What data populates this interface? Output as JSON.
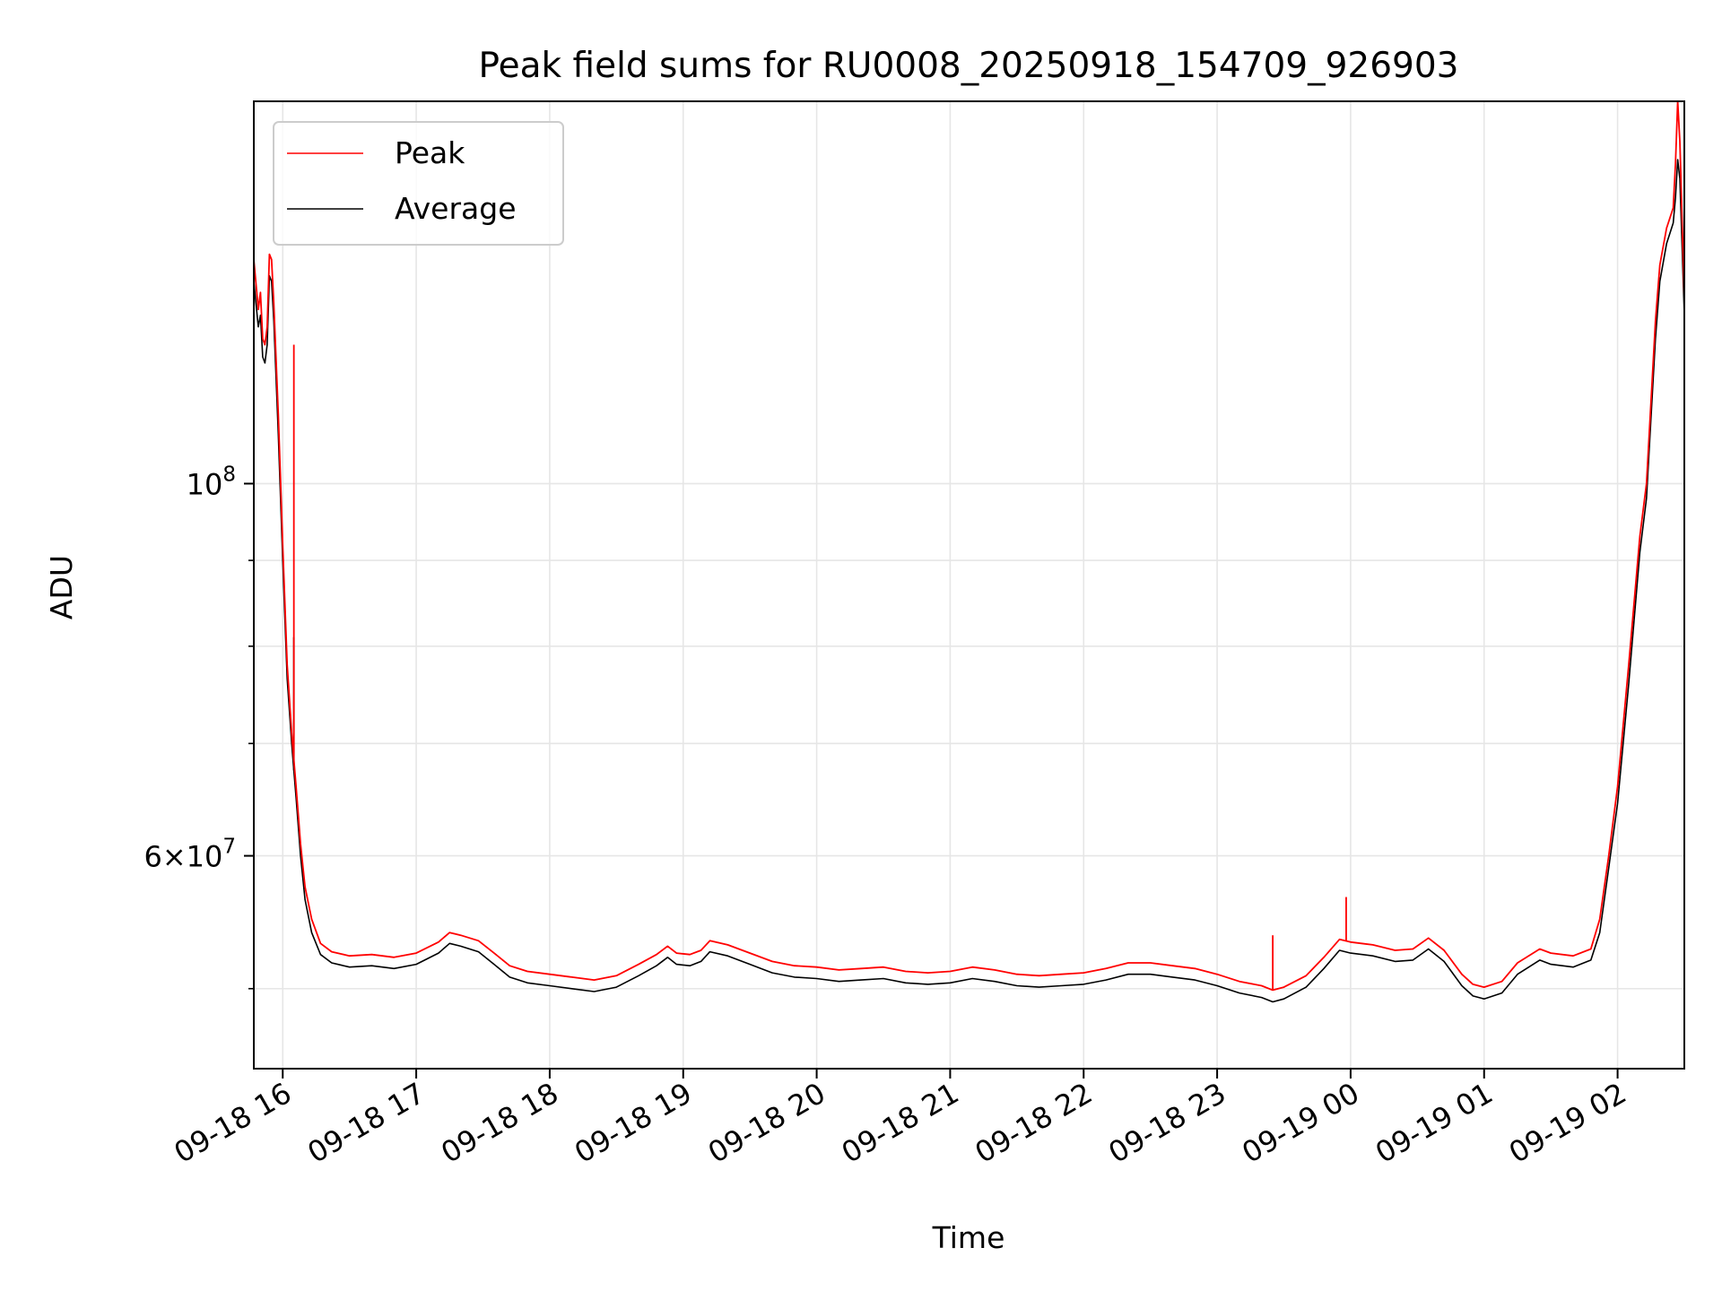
{
  "chart_data": {
    "type": "line",
    "title": "Peak field sums for RU0008_20250918_154709_926903",
    "xlabel": "Time",
    "ylabel": "ADU",
    "y_scale": "log",
    "ylim": [
      44800000,
      169000000
    ],
    "xlim": [
      "2025-09-18 15:47",
      "2025-09-19 02:30"
    ],
    "grid": true,
    "legend_position": "top-left",
    "x_ticks": [
      {
        "t": "2025-09-18 16:00",
        "label": "09-18 16"
      },
      {
        "t": "2025-09-18 17:00",
        "label": "09-18 17"
      },
      {
        "t": "2025-09-18 18:00",
        "label": "09-18 18"
      },
      {
        "t": "2025-09-18 19:00",
        "label": "09-18 19"
      },
      {
        "t": "2025-09-18 20:00",
        "label": "09-18 20"
      },
      {
        "t": "2025-09-18 21:00",
        "label": "09-18 21"
      },
      {
        "t": "2025-09-18 22:00",
        "label": "09-18 22"
      },
      {
        "t": "2025-09-18 23:00",
        "label": "09-18 23"
      },
      {
        "t": "2025-09-19 00:00",
        "label": "09-19 00"
      },
      {
        "t": "2025-09-19 01:00",
        "label": "09-19 01"
      },
      {
        "t": "2025-09-19 02:00",
        "label": "09-19 02"
      }
    ],
    "y_major_ticks": [
      {
        "value": 100000000,
        "base": "10",
        "exp": "8"
      },
      {
        "value": 60000000,
        "mant": "6",
        "times": "×",
        "base": "10",
        "exp": "7"
      }
    ],
    "y_minor_ticks": [
      50000000,
      70000000,
      80000000,
      90000000
    ],
    "series": [
      {
        "name": "Peak",
        "color": "#ff0000",
        "points": [
          [
            "2025-09-18 15:47",
            136000000
          ],
          [
            "2025-09-18 15:49",
            127000000
          ],
          [
            "2025-09-18 15:50",
            130000000
          ],
          [
            "2025-09-18 15:51",
            122000000
          ],
          [
            "2025-09-18 15:52",
            121000000
          ],
          [
            "2025-09-18 15:53",
            124000000
          ],
          [
            "2025-09-18 15:54",
            137000000
          ],
          [
            "2025-09-18 15:55",
            136000000
          ],
          [
            "2025-09-18 15:56",
            128000000
          ],
          [
            "2025-09-18 15:58",
            110000000
          ],
          [
            "2025-09-18 16:00",
            92000000
          ],
          [
            "2025-09-18 16:02",
            78000000
          ],
          [
            "2025-09-18 16:04",
            71000000
          ],
          [
            "2025-09-18 16:06",
            66000000
          ],
          [
            "2025-09-18 16:08",
            61000000
          ],
          [
            "2025-09-18 16:10",
            57500000
          ],
          [
            "2025-09-18 16:13",
            55000000
          ],
          [
            "2025-09-18 16:17",
            53200000
          ],
          [
            "2025-09-18 16:22",
            52600000
          ],
          [
            "2025-09-18 16:30",
            52300000
          ],
          [
            "2025-09-18 16:40",
            52400000
          ],
          [
            "2025-09-18 16:50",
            52200000
          ],
          [
            "2025-09-18 17:00",
            52500000
          ],
          [
            "2025-09-18 17:10",
            53300000
          ],
          [
            "2025-09-18 17:15",
            54000000
          ],
          [
            "2025-09-18 17:20",
            53800000
          ],
          [
            "2025-09-18 17:28",
            53400000
          ],
          [
            "2025-09-18 17:35",
            52500000
          ],
          [
            "2025-09-18 17:42",
            51600000
          ],
          [
            "2025-09-18 17:50",
            51200000
          ],
          [
            "2025-09-18 18:00",
            51000000
          ],
          [
            "2025-09-18 18:10",
            50800000
          ],
          [
            "2025-09-18 18:20",
            50600000
          ],
          [
            "2025-09-18 18:30",
            50900000
          ],
          [
            "2025-09-18 18:40",
            51700000
          ],
          [
            "2025-09-18 18:48",
            52400000
          ],
          [
            "2025-09-18 18:53",
            53000000
          ],
          [
            "2025-09-18 18:57",
            52500000
          ],
          [
            "2025-09-18 19:03",
            52400000
          ],
          [
            "2025-09-18 19:08",
            52700000
          ],
          [
            "2025-09-18 19:12",
            53400000
          ],
          [
            "2025-09-18 19:20",
            53100000
          ],
          [
            "2025-09-18 19:30",
            52500000
          ],
          [
            "2025-09-18 19:40",
            51900000
          ],
          [
            "2025-09-18 19:50",
            51600000
          ],
          [
            "2025-09-18 20:00",
            51500000
          ],
          [
            "2025-09-18 20:10",
            51300000
          ],
          [
            "2025-09-18 20:20",
            51400000
          ],
          [
            "2025-09-18 20:30",
            51500000
          ],
          [
            "2025-09-18 20:40",
            51200000
          ],
          [
            "2025-09-18 20:50",
            51100000
          ],
          [
            "2025-09-18 21:00",
            51200000
          ],
          [
            "2025-09-18 21:10",
            51500000
          ],
          [
            "2025-09-18 21:20",
            51300000
          ],
          [
            "2025-09-18 21:30",
            51000000
          ],
          [
            "2025-09-18 21:40",
            50900000
          ],
          [
            "2025-09-18 21:50",
            51000000
          ],
          [
            "2025-09-18 22:00",
            51100000
          ],
          [
            "2025-09-18 22:10",
            51400000
          ],
          [
            "2025-09-18 22:20",
            51800000
          ],
          [
            "2025-09-18 22:30",
            51800000
          ],
          [
            "2025-09-18 22:40",
            51600000
          ],
          [
            "2025-09-18 22:50",
            51400000
          ],
          [
            "2025-09-18 23:00",
            51000000
          ],
          [
            "2025-09-18 23:10",
            50500000
          ],
          [
            "2025-09-18 23:20",
            50200000
          ],
          [
            "2025-09-18 23:25",
            49900000
          ],
          [
            "2025-09-18 23:30",
            50100000
          ],
          [
            "2025-09-18 23:40",
            50900000
          ],
          [
            "2025-09-18 23:48",
            52200000
          ],
          [
            "2025-09-18 23:55",
            53500000
          ],
          [
            "2025-09-19 00:00",
            53300000
          ],
          [
            "2025-09-19 00:10",
            53100000
          ],
          [
            "2025-09-19 00:20",
            52700000
          ],
          [
            "2025-09-19 00:28",
            52800000
          ],
          [
            "2025-09-19 00:35",
            53600000
          ],
          [
            "2025-09-19 00:42",
            52700000
          ],
          [
            "2025-09-19 00:50",
            51000000
          ],
          [
            "2025-09-19 00:55",
            50300000
          ],
          [
            "2025-09-19 01:00",
            50100000
          ],
          [
            "2025-09-19 01:08",
            50500000
          ],
          [
            "2025-09-19 01:15",
            51800000
          ],
          [
            "2025-09-19 01:25",
            52800000
          ],
          [
            "2025-09-19 01:30",
            52500000
          ],
          [
            "2025-09-19 01:40",
            52300000
          ],
          [
            "2025-09-19 01:48",
            52800000
          ],
          [
            "2025-09-19 01:52",
            55000000
          ],
          [
            "2025-09-19 01:56",
            60000000
          ],
          [
            "2025-09-19 02:00",
            66000000
          ],
          [
            "2025-09-19 02:05",
            78000000
          ],
          [
            "2025-09-19 02:10",
            93000000
          ],
          [
            "2025-09-19 02:13",
            100000000
          ],
          [
            "2025-09-19 02:17",
            125000000
          ],
          [
            "2025-09-19 02:19",
            135000000
          ],
          [
            "2025-09-19 02:22",
            142000000
          ],
          [
            "2025-09-19 02:25",
            146000000
          ],
          [
            "2025-09-19 02:26",
            155000000
          ],
          [
            "2025-09-19 02:27",
            169000000
          ],
          [
            "2025-09-19 02:28",
            160000000
          ],
          [
            "2025-09-19 02:30",
            129000000
          ]
        ],
        "spikes": [
          [
            "2025-09-18 16:05",
            121000000
          ],
          [
            "2025-09-18 23:25",
            53800000
          ],
          [
            "2025-09-18 23:58",
            56700000
          ]
        ]
      },
      {
        "name": "Average",
        "color": "#000000",
        "points": [
          [
            "2025-09-18 15:47",
            132000000
          ],
          [
            "2025-09-18 15:49",
            124000000
          ],
          [
            "2025-09-18 15:50",
            126000000
          ],
          [
            "2025-09-18 15:51",
            119000000
          ],
          [
            "2025-09-18 15:52",
            118000000
          ],
          [
            "2025-09-18 15:53",
            121000000
          ],
          [
            "2025-09-18 15:54",
            133000000
          ],
          [
            "2025-09-18 15:55",
            132000000
          ],
          [
            "2025-09-18 15:56",
            125000000
          ],
          [
            "2025-09-18 15:58",
            107000000
          ],
          [
            "2025-09-18 16:00",
            90000000
          ],
          [
            "2025-09-18 16:02",
            76500000
          ],
          [
            "2025-09-18 16:04",
            70000000
          ],
          [
            "2025-09-18 16:06",
            65000000
          ],
          [
            "2025-09-18 16:08",
            60000000
          ],
          [
            "2025-09-18 16:10",
            56500000
          ],
          [
            "2025-09-18 16:13",
            54000000
          ],
          [
            "2025-09-18 16:17",
            52400000
          ],
          [
            "2025-09-18 16:22",
            51800000
          ],
          [
            "2025-09-18 16:30",
            51500000
          ],
          [
            "2025-09-18 16:40",
            51600000
          ],
          [
            "2025-09-18 16:50",
            51400000
          ],
          [
            "2025-09-18 17:00",
            51700000
          ],
          [
            "2025-09-18 17:10",
            52500000
          ],
          [
            "2025-09-18 17:15",
            53200000
          ],
          [
            "2025-09-18 17:20",
            53000000
          ],
          [
            "2025-09-18 17:28",
            52600000
          ],
          [
            "2025-09-18 17:35",
            51700000
          ],
          [
            "2025-09-18 17:42",
            50800000
          ],
          [
            "2025-09-18 17:50",
            50400000
          ],
          [
            "2025-09-18 18:00",
            50200000
          ],
          [
            "2025-09-18 18:10",
            50000000
          ],
          [
            "2025-09-18 18:20",
            49800000
          ],
          [
            "2025-09-18 18:30",
            50100000
          ],
          [
            "2025-09-18 18:40",
            50900000
          ],
          [
            "2025-09-18 18:48",
            51600000
          ],
          [
            "2025-09-18 18:53",
            52200000
          ],
          [
            "2025-09-18 18:57",
            51700000
          ],
          [
            "2025-09-18 19:03",
            51600000
          ],
          [
            "2025-09-18 19:08",
            51900000
          ],
          [
            "2025-09-18 19:12",
            52600000
          ],
          [
            "2025-09-18 19:20",
            52300000
          ],
          [
            "2025-09-18 19:30",
            51700000
          ],
          [
            "2025-09-18 19:40",
            51100000
          ],
          [
            "2025-09-18 19:50",
            50800000
          ],
          [
            "2025-09-18 20:00",
            50700000
          ],
          [
            "2025-09-18 20:10",
            50500000
          ],
          [
            "2025-09-18 20:20",
            50600000
          ],
          [
            "2025-09-18 20:30",
            50700000
          ],
          [
            "2025-09-18 20:40",
            50400000
          ],
          [
            "2025-09-18 20:50",
            50300000
          ],
          [
            "2025-09-18 21:00",
            50400000
          ],
          [
            "2025-09-18 21:10",
            50700000
          ],
          [
            "2025-09-18 21:20",
            50500000
          ],
          [
            "2025-09-18 21:30",
            50200000
          ],
          [
            "2025-09-18 21:40",
            50100000
          ],
          [
            "2025-09-18 21:50",
            50200000
          ],
          [
            "2025-09-18 22:00",
            50300000
          ],
          [
            "2025-09-18 22:10",
            50600000
          ],
          [
            "2025-09-18 22:20",
            51000000
          ],
          [
            "2025-09-18 22:30",
            51000000
          ],
          [
            "2025-09-18 22:40",
            50800000
          ],
          [
            "2025-09-18 22:50",
            50600000
          ],
          [
            "2025-09-18 23:00",
            50200000
          ],
          [
            "2025-09-18 23:10",
            49700000
          ],
          [
            "2025-09-18 23:20",
            49400000
          ],
          [
            "2025-09-18 23:25",
            49100000
          ],
          [
            "2025-09-18 23:30",
            49300000
          ],
          [
            "2025-09-18 23:40",
            50100000
          ],
          [
            "2025-09-18 23:48",
            51400000
          ],
          [
            "2025-09-18 23:55",
            52700000
          ],
          [
            "2025-09-19 00:00",
            52500000
          ],
          [
            "2025-09-19 00:10",
            52300000
          ],
          [
            "2025-09-19 00:20",
            51900000
          ],
          [
            "2025-09-19 00:28",
            52000000
          ],
          [
            "2025-09-19 00:35",
            52800000
          ],
          [
            "2025-09-19 00:42",
            51900000
          ],
          [
            "2025-09-19 00:50",
            50200000
          ],
          [
            "2025-09-19 00:55",
            49500000
          ],
          [
            "2025-09-19 01:00",
            49300000
          ],
          [
            "2025-09-19 01:08",
            49700000
          ],
          [
            "2025-09-19 01:15",
            51000000
          ],
          [
            "2025-09-19 01:25",
            52000000
          ],
          [
            "2025-09-19 01:30",
            51700000
          ],
          [
            "2025-09-19 01:40",
            51500000
          ],
          [
            "2025-09-19 01:48",
            52000000
          ],
          [
            "2025-09-19 01:52",
            54000000
          ],
          [
            "2025-09-19 01:56",
            59000000
          ],
          [
            "2025-09-19 02:00",
            64500000
          ],
          [
            "2025-09-19 02:05",
            76000000
          ],
          [
            "2025-09-19 02:10",
            91000000
          ],
          [
            "2025-09-19 02:13",
            98000000
          ],
          [
            "2025-09-19 02:17",
            122000000
          ],
          [
            "2025-09-19 02:19",
            132000000
          ],
          [
            "2025-09-19 02:22",
            139000000
          ],
          [
            "2025-09-19 02:25",
            143000000
          ],
          [
            "2025-09-19 02:26",
            148000000
          ],
          [
            "2025-09-19 02:27",
            156000000
          ],
          [
            "2025-09-19 02:28",
            152000000
          ],
          [
            "2025-09-19 02:30",
            126000000
          ]
        ],
        "spikes": [
          [
            "2025-09-18 16:05",
            81000000
          ]
        ]
      }
    ]
  }
}
